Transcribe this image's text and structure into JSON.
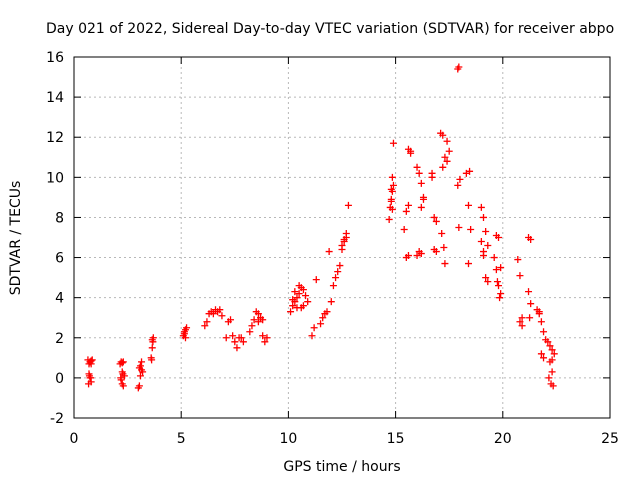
{
  "chart_data": {
    "type": "scatter",
    "title": "Day 021 of 2022, Sidereal Day-to-day VTEC variation (SDTVAR) for receiver abpo",
    "xlabel": "GPS time / hours",
    "ylabel": "SDTVAR / TECUs",
    "xlim": [
      0,
      25
    ],
    "ylim": [
      -2,
      16
    ],
    "xticks": [
      "0",
      "5",
      "10",
      "15",
      "20",
      "25"
    ],
    "yticks": [
      "-2",
      "0",
      "2",
      "4",
      "6",
      "8",
      "10",
      "12",
      "14",
      "16"
    ],
    "grid": true,
    "marker": "+",
    "marker_color": "#ff0000",
    "series": [
      {
        "name": "SDTVAR",
        "x": [
          0.65,
          0.7,
          0.75,
          0.8,
          0.85,
          0.7,
          0.75,
          0.8,
          0.68,
          0.72,
          0.78,
          0.8,
          0.75,
          2.15,
          2.2,
          2.25,
          2.3,
          2.35,
          2.2,
          2.25,
          2.3,
          2.18,
          2.28,
          2.25,
          3.0,
          3.05,
          3.1,
          3.15,
          3.2,
          3.05,
          3.1,
          3.15,
          3.6,
          3.65,
          3.7,
          3.62,
          3.68,
          3.65,
          5.1,
          5.15,
          5.2,
          5.25,
          5.15,
          5.2,
          6.1,
          6.2,
          6.3,
          6.4,
          6.5,
          6.6,
          6.7,
          6.8,
          6.9,
          7.1,
          7.2,
          7.3,
          7.4,
          7.5,
          7.6,
          7.7,
          7.8,
          7.9,
          8.2,
          8.3,
          8.4,
          8.5,
          8.6,
          8.7,
          8.8,
          8.9,
          9.0,
          8.6,
          8.7,
          8.8,
          10.1,
          10.2,
          10.3,
          10.4,
          10.5,
          10.6,
          10.7,
          10.8,
          10.9,
          10.2,
          10.3,
          10.5,
          10.6,
          10.4,
          10.7,
          11.1,
          11.2,
          11.3,
          11.5,
          11.6,
          11.7,
          11.8,
          11.9,
          12.0,
          12.1,
          12.2,
          12.3,
          12.4,
          12.5,
          12.6,
          12.7,
          12.8,
          12.5,
          12.6,
          12.7,
          14.7,
          14.75,
          14.8,
          14.85,
          14.9,
          14.8,
          14.85,
          14.9,
          14.8,
          14.85,
          15.4,
          15.5,
          15.6,
          15.7,
          15.6,
          15.7,
          15.5,
          15.6,
          16.0,
          16.1,
          16.2,
          16.3,
          16.1,
          16.2,
          16.0,
          16.3,
          16.2,
          16.7,
          16.8,
          16.9,
          16.8,
          16.9,
          16.7,
          17.1,
          17.2,
          17.3,
          17.4,
          17.5,
          17.2,
          17.3,
          17.15,
          17.25,
          17.4,
          17.9,
          17.95,
          18.0,
          17.9,
          17.95,
          18.3,
          18.4,
          18.5,
          18.4,
          18.45,
          19.0,
          19.1,
          19.2,
          19.3,
          19.1,
          19.2,
          19.3,
          19.0,
          19.1,
          19.6,
          19.7,
          19.8,
          19.9,
          19.7,
          19.8,
          19.9,
          19.75,
          19.85,
          20.7,
          20.8,
          20.9,
          20.8,
          20.9,
          21.2,
          21.3,
          21.2,
          21.3,
          21.25,
          21.6,
          21.7,
          21.8,
          21.9,
          22.0,
          21.8,
          21.9,
          21.7,
          22.1,
          22.2,
          22.3,
          22.4,
          22.2,
          22.3,
          22.25,
          22.35,
          22.15,
          22.3
        ],
        "y": [
          0.9,
          0.7,
          0.8,
          0.85,
          0.9,
          0.2,
          0.0,
          -0.2,
          -0.3,
          0.1,
          0.0,
          0.7,
          0.8,
          0.7,
          0.8,
          0.75,
          0.8,
          0.1,
          -0.1,
          -0.3,
          -0.4,
          0.0,
          0.2,
          0.3,
          -0.5,
          0.5,
          0.6,
          0.8,
          0.3,
          -0.4,
          0.1,
          0.4,
          1.0,
          1.9,
          2.0,
          0.9,
          1.8,
          1.5,
          2.1,
          2.3,
          2.4,
          2.5,
          2.2,
          2.0,
          2.6,
          2.8,
          3.2,
          3.3,
          3.2,
          3.4,
          3.3,
          3.4,
          3.1,
          2.0,
          2.8,
          2.9,
          2.1,
          1.8,
          1.5,
          2.0,
          2.0,
          1.8,
          2.3,
          2.6,
          2.9,
          3.3,
          3.2,
          3.0,
          2.1,
          1.8,
          2.0,
          2.8,
          3.0,
          2.9,
          3.3,
          3.6,
          3.8,
          4.0,
          4.2,
          4.5,
          4.4,
          4.1,
          3.8,
          3.9,
          4.3,
          4.6,
          3.5,
          3.5,
          3.6,
          2.1,
          2.5,
          4.9,
          2.7,
          3.0,
          3.2,
          3.3,
          6.3,
          3.8,
          4.6,
          5.0,
          5.3,
          5.6,
          6.6,
          6.9,
          7.2,
          8.6,
          6.4,
          6.8,
          7.0,
          7.9,
          8.5,
          8.8,
          9.3,
          9.6,
          9.4,
          10.0,
          11.7,
          8.9,
          8.4,
          7.4,
          8.3,
          8.6,
          11.3,
          11.4,
          11.2,
          6.0,
          6.1,
          10.5,
          10.2,
          9.7,
          9.0,
          6.3,
          6.2,
          6.1,
          8.9,
          8.5,
          10.0,
          8.0,
          7.8,
          6.4,
          6.3,
          10.2,
          12.2,
          12.1,
          11.0,
          10.8,
          11.3,
          10.5,
          5.7,
          7.2,
          6.5,
          11.8,
          15.4,
          15.5,
          9.9,
          9.6,
          7.5,
          10.2,
          8.6,
          7.4,
          5.7,
          10.3,
          8.5,
          8.0,
          7.3,
          6.6,
          6.1,
          5.0,
          4.8,
          6.8,
          6.3,
          6.0,
          7.1,
          7.0,
          5.5,
          5.4,
          4.6,
          4.2,
          4.8,
          4.0,
          5.9,
          5.1,
          3.0,
          2.8,
          2.6,
          7.0,
          6.9,
          4.3,
          3.7,
          3.0,
          3.4,
          3.2,
          2.8,
          2.3,
          1.9,
          1.2,
          1.0,
          3.3,
          1.8,
          1.6,
          1.4,
          1.2,
          0.8,
          0.3,
          -0.3,
          -0.4,
          0.0,
          0.9
        ]
      }
    ]
  }
}
